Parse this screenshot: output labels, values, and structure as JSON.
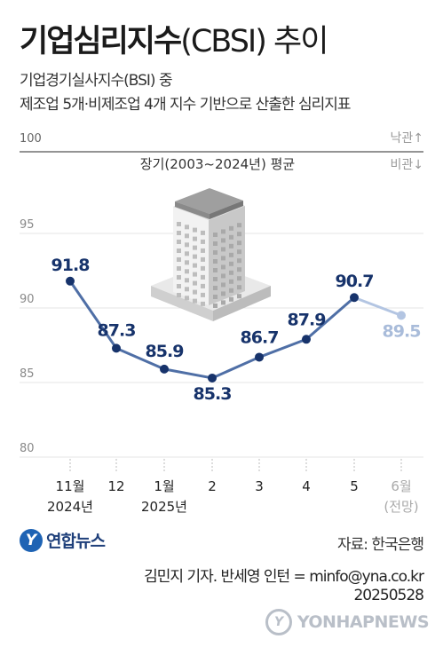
{
  "title": {
    "main": "기업심리지수",
    "sub": "(CBSI) 추이"
  },
  "subtitle_lines": [
    "기업경기실사지수(BSI) 중",
    "제조업 5개·비제조업 4개 지수 기반으로 산출한 심리지표"
  ],
  "legend": {
    "up": "낙관↑",
    "down": "비관↓"
  },
  "reference_line": {
    "label": "100",
    "caption": "장기(2003~2024년) 평균",
    "value": 100
  },
  "chart_data": {
    "type": "line",
    "title": "기업심리지수(CBSI) 추이",
    "y_ticks": [
      "95",
      "90",
      "85",
      "80"
    ],
    "ylim": [
      80,
      100
    ],
    "categories": [
      {
        "label": "11월",
        "sub": "2024년",
        "forecast": false
      },
      {
        "label": "12",
        "sub": "",
        "forecast": false
      },
      {
        "label": "1월",
        "sub": "2025년",
        "forecast": false
      },
      {
        "label": "2",
        "sub": "",
        "forecast": false
      },
      {
        "label": "3",
        "sub": "",
        "forecast": false
      },
      {
        "label": "4",
        "sub": "",
        "forecast": false
      },
      {
        "label": "5",
        "sub": "",
        "forecast": false
      },
      {
        "label": "6월",
        "sub": "(전망)",
        "forecast": true
      }
    ],
    "values": [
      91.8,
      87.3,
      85.9,
      85.3,
      86.7,
      87.9,
      90.7,
      89.5
    ],
    "value_labels": [
      "91.8",
      "87.3",
      "85.9",
      "85.3",
      "86.7",
      "87.9",
      "90.7",
      "89.5"
    ],
    "colors": {
      "line": "#4f6fa6",
      "point": "#17336b",
      "forecast": "#b3c5e2",
      "forecast_text": "#a9bcda",
      "label": "#17336b"
    }
  },
  "logo": {
    "mark": "Y",
    "text": "연합뉴스"
  },
  "source": "자료: 한국은행",
  "credit": {
    "line1": "김민지 기자. 반세영 인턴 = minfo@yna.co.kr",
    "line2": "20250528"
  },
  "watermark": {
    "mark": "Y",
    "text": "YONHAPNEWS"
  }
}
